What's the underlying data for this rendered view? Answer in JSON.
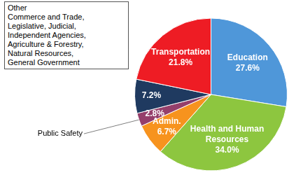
{
  "chart_data": {
    "type": "pie",
    "categories": [
      "Education",
      "Health and Human Resources",
      "Admin.",
      "Public Safety",
      "Other",
      "Transportation"
    ],
    "values": [
      27.6,
      34.0,
      6.7,
      2.8,
      7.2,
      21.8
    ],
    "value_labels": [
      "27.6%",
      "34.0%",
      "6.7%",
      "2.8%",
      "7.2%",
      "21.8%"
    ],
    "colors": [
      "#4f97d9",
      "#8dc63f",
      "#f7931e",
      "#953f6b",
      "#1f3a60",
      "#ee1c24"
    ],
    "data_labels": true,
    "annotations": {
      "Other": [
        "Commerce and Trade,",
        "Legislative, Judicial,",
        "Independent Agencies,",
        "Agriculture & Forestry,",
        "Natural Resources,",
        "General Government"
      ]
    }
  }
}
